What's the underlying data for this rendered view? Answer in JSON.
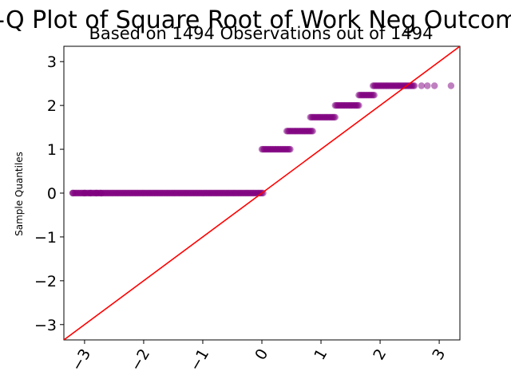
{
  "chart_data": {
    "type": "scatter",
    "title": "Q-Q Plot of Square Root of Work Neg Outcomes",
    "subtitle": "Based on 1494 Observations out of 1494",
    "xlabel": "",
    "ylabel": "Sample Quantiles",
    "xlim": [
      -3.35,
      3.35
    ],
    "ylim": [
      -3.35,
      3.35
    ],
    "x_ticks": [
      -3,
      -2,
      -1,
      0,
      1,
      2,
      3
    ],
    "x_tick_labels": [
      "−3",
      "−2",
      "−1",
      "0",
      "1",
      "2",
      "3"
    ],
    "y_ticks": [
      -3,
      -2,
      -1,
      0,
      1,
      2,
      3
    ],
    "y_tick_labels": [
      "−3",
      "−2",
      "−1",
      "0",
      "1",
      "2",
      "3"
    ],
    "grid": false,
    "point_color": "#800080",
    "line_color": "#ff0000",
    "reference_line": {
      "slope": 1,
      "intercept": 0
    },
    "series": [
      {
        "values": [
          {
            "y": 0,
            "x_min": -3.2,
            "x_max": 0.03,
            "singles": [
              -3.2,
              -3.0,
              -2.9,
              -2.8,
              -2.72
            ]
          },
          {
            "y": 1.0,
            "x_min": 0.0,
            "x_max": 0.48,
            "singles": []
          },
          {
            "y": 1.414,
            "x_min": 0.42,
            "x_max": 0.87,
            "singles": []
          },
          {
            "y": 1.732,
            "x_min": 0.82,
            "x_max": 1.25,
            "singles": []
          },
          {
            "y": 2.0,
            "x_min": 1.24,
            "x_max": 1.65,
            "singles": []
          },
          {
            "y": 2.236,
            "x_min": 1.64,
            "x_max": 1.9,
            "singles": []
          },
          {
            "y": 2.449,
            "x_min": 1.88,
            "x_max": 2.58,
            "singles": [
              2.7,
              2.8,
              2.92,
              3.2
            ]
          }
        ]
      }
    ]
  }
}
